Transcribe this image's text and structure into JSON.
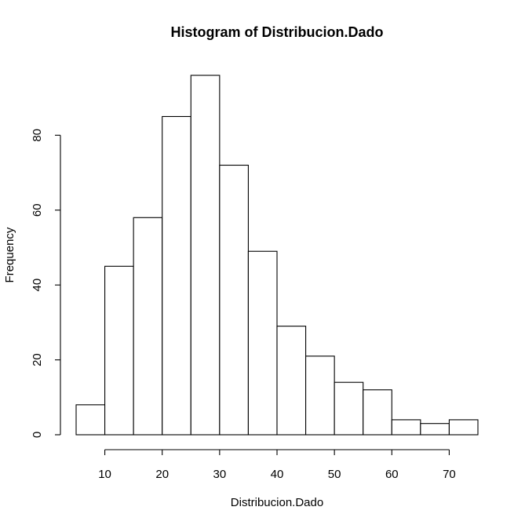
{
  "chart_data": {
    "type": "bar",
    "title": "Histogram of Distribucion.Dado",
    "xlabel": "Distribucion.Dado",
    "ylabel": "Frequency",
    "bins": [
      {
        "from": 5,
        "to": 10,
        "count": 8
      },
      {
        "from": 10,
        "to": 15,
        "count": 45
      },
      {
        "from": 15,
        "to": 20,
        "count": 58
      },
      {
        "from": 20,
        "to": 25,
        "count": 85
      },
      {
        "from": 25,
        "to": 30,
        "count": 96
      },
      {
        "from": 30,
        "to": 35,
        "count": 72
      },
      {
        "from": 35,
        "to": 40,
        "count": 49
      },
      {
        "from": 40,
        "to": 45,
        "count": 29
      },
      {
        "from": 45,
        "to": 50,
        "count": 21
      },
      {
        "from": 50,
        "to": 55,
        "count": 14
      },
      {
        "from": 55,
        "to": 60,
        "count": 12
      },
      {
        "from": 60,
        "to": 65,
        "count": 4
      },
      {
        "from": 65,
        "to": 70,
        "count": 3
      },
      {
        "from": 70,
        "to": 75,
        "count": 4
      }
    ],
    "xlim": [
      5,
      75
    ],
    "ylim": [
      0,
      96
    ],
    "x_ticks": [
      10,
      20,
      30,
      40,
      50,
      60,
      70
    ],
    "y_ticks": [
      0,
      20,
      40,
      60,
      80
    ],
    "grid": false,
    "bar_fill": "#ffffff",
    "bar_stroke": "#000000"
  }
}
